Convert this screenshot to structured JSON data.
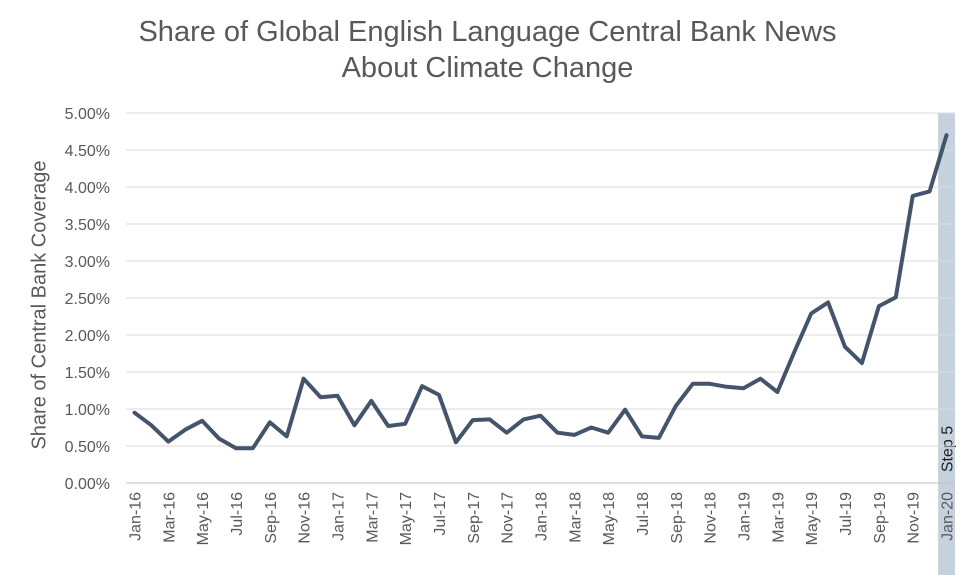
{
  "chart_data": {
    "type": "line",
    "title_line1": "Share of Global English Language Central Bank News",
    "title_line2": "About Climate Change",
    "xlabel": "",
    "ylabel": "Share of Central Bank Coverage",
    "ylim": [
      0,
      5
    ],
    "yticks": [
      "0.00%",
      "0.50%",
      "1.00%",
      "1.50%",
      "2.00%",
      "2.50%",
      "3.00%",
      "3.50%",
      "4.00%",
      "4.50%",
      "5.00%"
    ],
    "x_tick_labels": [
      "Jan-16",
      "Mar-16",
      "May-16",
      "Jul-16",
      "Sep-16",
      "Nov-16",
      "Jan-17",
      "Mar-17",
      "May-17",
      "Jul-17",
      "Sep-17",
      "Nov-17",
      "Jan-18",
      "Mar-18",
      "May-18",
      "Jul-18",
      "Sep-18",
      "Nov-18",
      "Jan-19",
      "Mar-19",
      "May-19",
      "Jul-19",
      "Sep-19",
      "Nov-19",
      "Jan-20"
    ],
    "grid": true,
    "legend": "none",
    "series_color": "#44546a",
    "highlight": {
      "label": "Step 5",
      "category": "Jan-20",
      "color": "#c5d2de"
    },
    "x": [
      "Jan-16",
      "Feb-16",
      "Mar-16",
      "Apr-16",
      "May-16",
      "Jun-16",
      "Jul-16",
      "Aug-16",
      "Sep-16",
      "Oct-16",
      "Nov-16",
      "Dec-16",
      "Jan-17",
      "Feb-17",
      "Mar-17",
      "Apr-17",
      "May-17",
      "Jun-17",
      "Jul-17",
      "Aug-17",
      "Sep-17",
      "Oct-17",
      "Nov-17",
      "Dec-17",
      "Jan-18",
      "Feb-18",
      "Mar-18",
      "Apr-18",
      "May-18",
      "Jun-18",
      "Jul-18",
      "Aug-18",
      "Sep-18",
      "Oct-18",
      "Nov-18",
      "Dec-18",
      "Jan-19",
      "Feb-19",
      "Mar-19",
      "Apr-19",
      "May-19",
      "Jun-19",
      "Jul-19",
      "Aug-19",
      "Sep-19",
      "Oct-19",
      "Nov-19",
      "Dec-19",
      "Jan-20"
    ],
    "values": [
      0.95,
      0.78,
      0.56,
      0.72,
      0.84,
      0.6,
      0.47,
      0.47,
      0.82,
      0.63,
      1.41,
      1.16,
      1.18,
      0.78,
      1.11,
      0.77,
      0.8,
      1.31,
      1.19,
      0.55,
      0.85,
      0.86,
      0.68,
      0.86,
      0.91,
      0.68,
      0.65,
      0.75,
      0.68,
      0.99,
      0.63,
      0.61,
      1.04,
      1.34,
      1.34,
      1.3,
      1.28,
      1.41,
      1.23,
      1.77,
      2.29,
      2.44,
      1.84,
      1.62,
      2.39,
      2.51,
      3.88,
      3.94,
      4.7
    ]
  }
}
